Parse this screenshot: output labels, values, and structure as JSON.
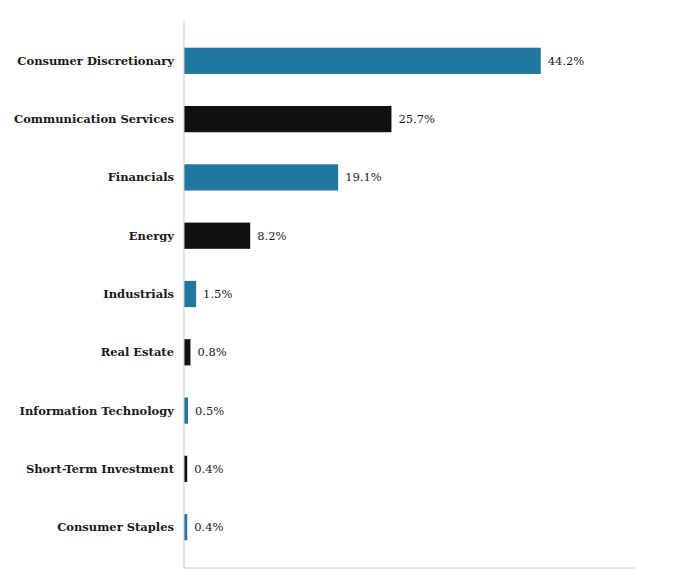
{
  "chart_data": {
    "type": "bar",
    "orientation": "horizontal",
    "categories": [
      "Consumer Staples",
      "Short-Term Investment",
      "Information Technology",
      "Real Estate",
      "Industrials",
      "Energy",
      "Financials",
      "Communication Services",
      "Consumer Discretionary"
    ],
    "values": [
      0.4,
      0.4,
      0.5,
      0.8,
      1.5,
      8.2,
      19.1,
      25.7,
      44.2
    ],
    "value_labels": [
      "0.4%",
      "0.4%",
      "0.5%",
      "0.8%",
      "1.5%",
      "8.2%",
      "19.1%",
      "25.7%",
      "44.2%"
    ],
    "colors": [
      "#2077a0",
      "#111111",
      "#2077a0",
      "#111111",
      "#2077a0",
      "#111111",
      "#2077a0",
      "#111111",
      "#2077a0"
    ],
    "xlim": [
      0,
      56
    ],
    "data_labels": true,
    "tick_labels": "y",
    "grid": false
  }
}
